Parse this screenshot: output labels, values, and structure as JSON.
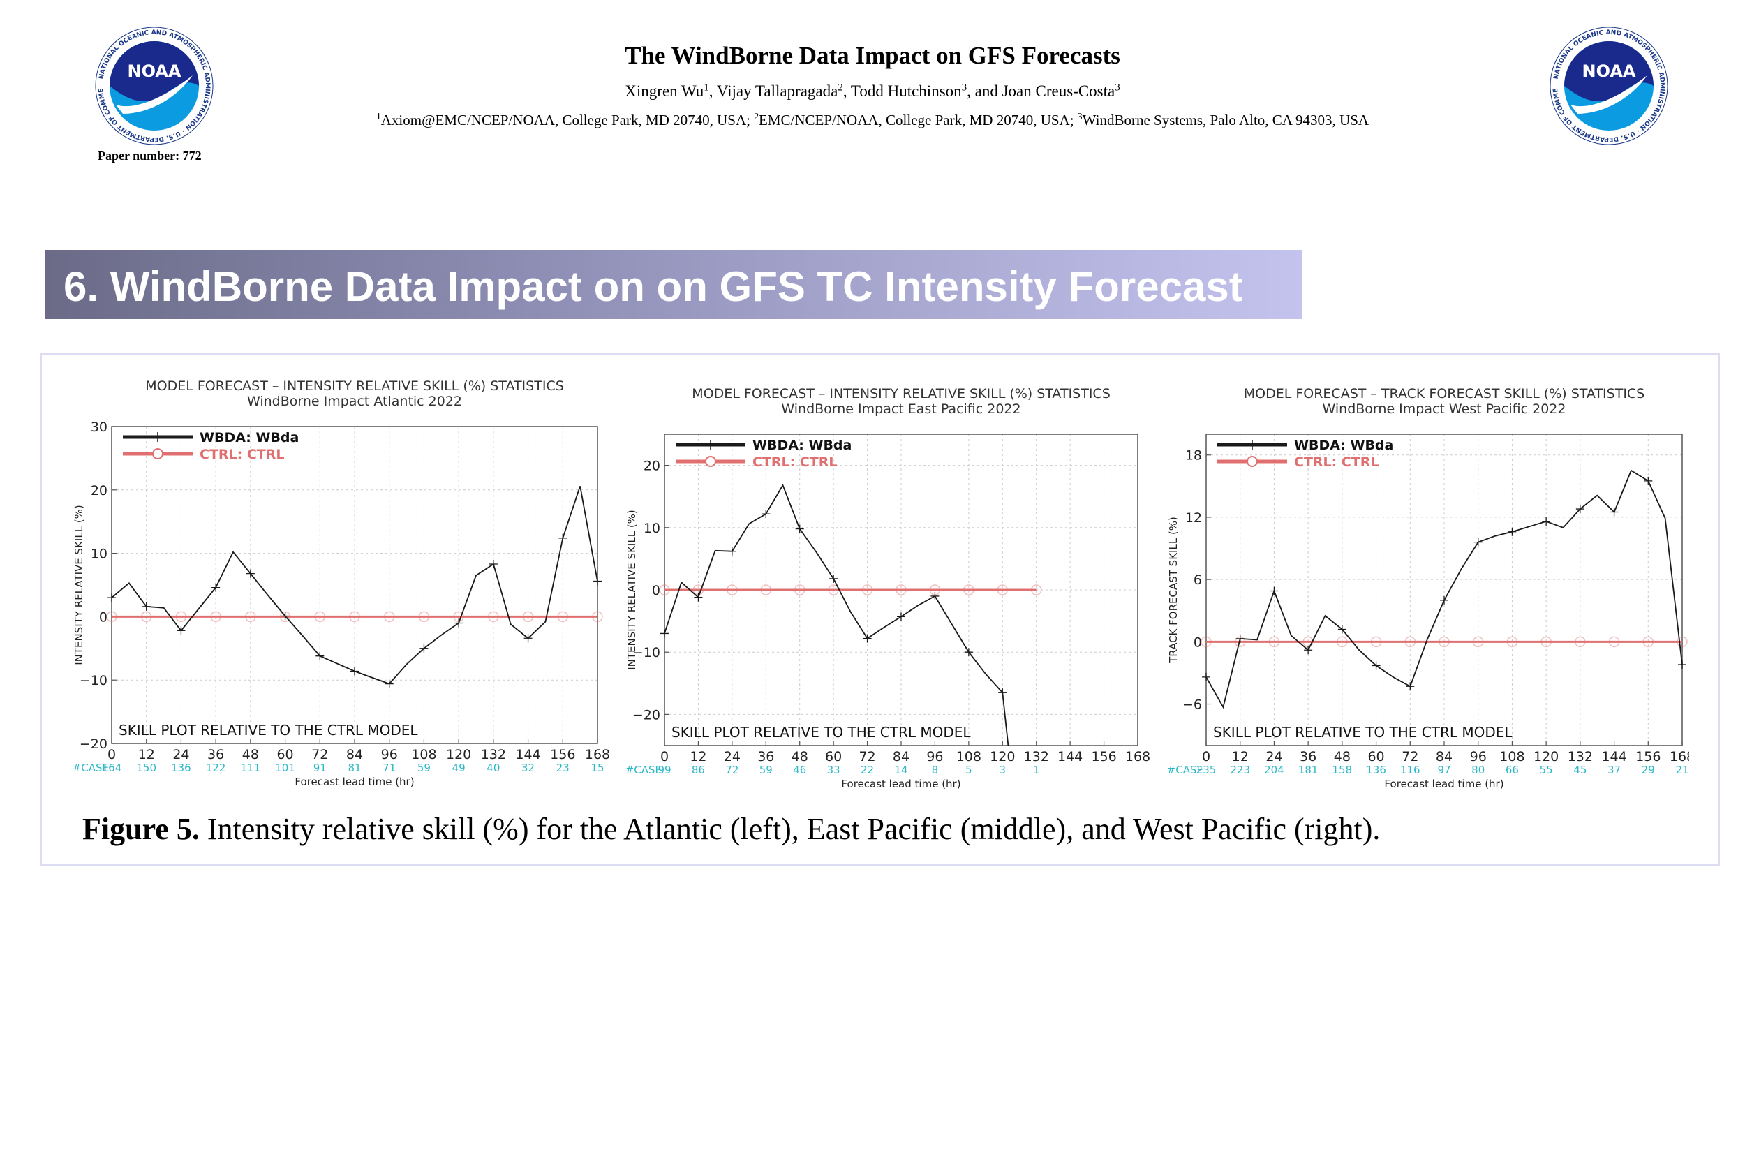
{
  "header": {
    "title": "The WindBorne Data Impact on GFS Forecasts",
    "authors": [
      "Xingren Wu",
      "Vijay Tallapragada",
      "Todd Hutchinson",
      "Joan Creus-Costa"
    ],
    "author_marks": [
      "1",
      "2",
      "3",
      "3"
    ],
    "author_separators": [
      ", ",
      ", ",
      ", and ",
      ""
    ],
    "affiliations": [
      {
        "mark": "1",
        "text": "Axiom@EMC/NCEP/NOAA, College Park, MD 20740, USA; "
      },
      {
        "mark": "2",
        "text": "EMC/NCEP/NOAA, College Park, MD 20740, USA; "
      },
      {
        "mark": "3",
        "text": "WindBorne Systems, Palo Alto, CA  94303, USA"
      }
    ],
    "paper_number": "Paper number: 772"
  },
  "logos": {
    "text": "NOAA",
    "ring_text": "NATIONAL OCEANIC AND ATMOSPHERIC ADMINISTRATION · U.S. DEPARTMENT OF COMMERCE"
  },
  "section": {
    "title": "6. WindBorne Data Impact on on GFS TC Intensity Forecast"
  },
  "caption": {
    "label": "Figure 5.",
    "text": " Intensity relative skill (%) for the Atlantic (left), East Pacific (middle), and West Pacific (right)."
  },
  "colors": {
    "wbda": "#1a1a1a",
    "ctrl": "#e07070",
    "case": "#2bb8c8",
    "banner_start": "#6b6b88",
    "banner_end": "#c3c3ee"
  },
  "chart_data": [
    {
      "type": "line",
      "title": "MODEL FORECAST – INTENSITY RELATIVE SKILL (%) STATISTICS",
      "subtitle": "WindBorne Impact Atlantic 2022",
      "xlabel": "Forecast lead time (hr)",
      "ylabel": "INTENSITY RELATIVE SKILL (%)",
      "xlim": [
        0,
        168
      ],
      "ylim": [
        -20,
        30
      ],
      "yticks": [
        -20,
        -10,
        0,
        10,
        20,
        30
      ],
      "ytick_labels": [
        "−20",
        "−10",
        "0",
        "10",
        "20",
        "30"
      ],
      "xticks": [
        0,
        12,
        24,
        36,
        48,
        60,
        72,
        84,
        96,
        108,
        120,
        132,
        144,
        156,
        168
      ],
      "case_label": "#CASE",
      "case_counts": [
        164,
        150,
        136,
        122,
        111,
        101,
        91,
        81,
        71,
        59,
        49,
        40,
        32,
        23,
        15
      ],
      "annotation": "SKILL PLOT RELATIVE TO THE CTRL MODEL",
      "grid": true,
      "legend_position": "top-left",
      "series": [
        {
          "name": "WBDA: WBda",
          "x": [
            0,
            6,
            12,
            18,
            24,
            30,
            36,
            42,
            48,
            54,
            60,
            66,
            72,
            78,
            84,
            90,
            96,
            102,
            108,
            114,
            120,
            126,
            132,
            138,
            144,
            150,
            156,
            162,
            168
          ],
          "y": [
            3,
            5.3,
            1.6,
            1.4,
            -2.2,
            1.2,
            4.6,
            10.2,
            6.8,
            3.4,
            0.1,
            -3,
            -6.2,
            -7.4,
            -8.6,
            -9.6,
            -10.6,
            -7.5,
            -5,
            -2.9,
            -1,
            6.5,
            8.3,
            -1.2,
            -3.4,
            -0.8,
            12.4,
            20.6,
            5.6
          ]
        },
        {
          "name": "CTRL: CTRL",
          "x": [
            0,
            6,
            12,
            18,
            24,
            30,
            36,
            42,
            48,
            54,
            60,
            66,
            72,
            78,
            84,
            90,
            96,
            102,
            108,
            114,
            120,
            126,
            132,
            138,
            144,
            150,
            156,
            162,
            168
          ],
          "y": [
            0,
            0,
            0,
            0,
            0,
            0,
            0,
            0,
            0,
            0,
            0,
            0,
            0,
            0,
            0,
            0,
            0,
            0,
            0,
            0,
            0,
            0,
            0,
            0,
            0,
            0,
            0,
            0,
            0
          ]
        }
      ]
    },
    {
      "type": "line",
      "title": "MODEL FORECAST – INTENSITY RELATIVE SKILL (%) STATISTICS",
      "subtitle": "WindBorne Impact East Pacific 2022",
      "xlabel": "Forecast lead time (hr)",
      "ylabel": "INTENSITY RELATIVE SKILL (%)",
      "xlim": [
        0,
        168
      ],
      "ylim": [
        -25,
        25
      ],
      "yticks": [
        -20,
        -10,
        0,
        10,
        20
      ],
      "ytick_labels": [
        "−20",
        "−10",
        "0",
        "10",
        "20"
      ],
      "xticks": [
        0,
        12,
        24,
        36,
        48,
        60,
        72,
        84,
        96,
        108,
        120,
        132,
        144,
        156,
        168
      ],
      "case_label": "#CASE",
      "case_counts": [
        99,
        86,
        72,
        59,
        46,
        33,
        22,
        14,
        8,
        5,
        3,
        1
      ],
      "annotation": "SKILL PLOT RELATIVE TO THE CTRL MODEL",
      "grid": true,
      "legend_position": "top-left",
      "series": [
        {
          "name": "WBDA: WBda",
          "x": [
            0,
            6,
            12,
            18,
            24,
            30,
            36,
            42,
            48,
            54,
            60,
            66,
            72,
            78,
            84,
            90,
            96,
            102,
            108,
            114,
            120,
            122
          ],
          "y": [
            -7,
            1.2,
            -1.2,
            6.3,
            6.2,
            10.6,
            12.2,
            16.8,
            9.8,
            6,
            1.8,
            -3.5,
            -7.8,
            -6,
            -4.3,
            -2.5,
            -1,
            -5.5,
            -10,
            -13.5,
            -16.5,
            -25
          ]
        },
        {
          "name": "CTRL: CTRL",
          "x": [
            0,
            6,
            12,
            18,
            24,
            30,
            36,
            42,
            48,
            54,
            60,
            66,
            72,
            78,
            84,
            90,
            96,
            102,
            108,
            114,
            120,
            126,
            132
          ],
          "y": [
            0,
            0,
            0,
            0,
            0,
            0,
            0,
            0,
            0,
            0,
            0,
            0,
            0,
            0,
            0,
            0,
            0,
            0,
            0,
            0,
            0,
            0,
            0
          ]
        }
      ]
    },
    {
      "type": "line",
      "title": "MODEL FORECAST – TRACK FORECAST SKILL (%) STATISTICS",
      "subtitle": "WindBorne Impact West Pacific 2022",
      "xlabel": "Forecast lead time (hr)",
      "ylabel": "TRACK FORECAST SKILL (%)",
      "xlim": [
        0,
        168
      ],
      "ylim": [
        -10,
        20
      ],
      "yticks": [
        -6,
        0,
        6,
        12,
        18
      ],
      "ytick_labels": [
        "−6",
        "0",
        "6",
        "12",
        "18"
      ],
      "xticks": [
        0,
        12,
        24,
        36,
        48,
        60,
        72,
        84,
        96,
        108,
        120,
        132,
        144,
        156,
        168
      ],
      "case_label": "#CASE",
      "case_counts": [
        235,
        223,
        204,
        181,
        158,
        136,
        116,
        97,
        80,
        66,
        55,
        45,
        37,
        29,
        21
      ],
      "annotation": "SKILL PLOT RELATIVE TO THE CTRL MODEL",
      "grid": true,
      "legend_position": "top-left",
      "series": [
        {
          "name": "WBDA: WBda",
          "x": [
            0,
            6,
            12,
            18,
            24,
            30,
            36,
            42,
            48,
            54,
            60,
            66,
            72,
            78,
            84,
            90,
            96,
            102,
            108,
            114,
            120,
            126,
            132,
            138,
            144,
            150,
            156,
            162,
            168
          ],
          "y": [
            -3.4,
            -6.3,
            0.3,
            0.2,
            4.9,
            0.6,
            -0.8,
            2.5,
            1.2,
            -0.8,
            -2.3,
            -3.4,
            -4.3,
            0.2,
            4,
            7,
            9.6,
            10.2,
            10.6,
            11.1,
            11.6,
            11,
            12.8,
            14.1,
            12.5,
            16.5,
            15.5,
            11.9,
            -2.2
          ]
        },
        {
          "name": "CTRL: CTRL",
          "x": [
            0,
            6,
            12,
            18,
            24,
            30,
            36,
            42,
            48,
            54,
            60,
            66,
            72,
            78,
            84,
            90,
            96,
            102,
            108,
            114,
            120,
            126,
            132,
            138,
            144,
            150,
            156,
            162,
            168
          ],
          "y": [
            0,
            0,
            0,
            0,
            0,
            0,
            0,
            0,
            0,
            0,
            0,
            0,
            0,
            0,
            0,
            0,
            0,
            0,
            0,
            0,
            0,
            0,
            0,
            0,
            0,
            0,
            0,
            0,
            0
          ]
        }
      ]
    }
  ]
}
